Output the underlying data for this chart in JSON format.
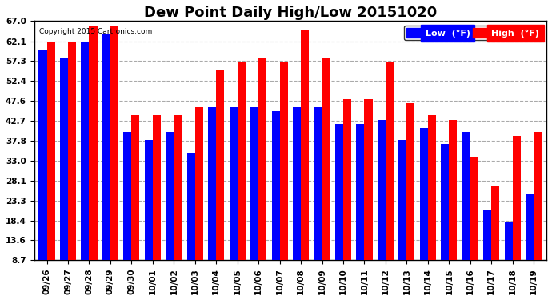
{
  "title": "Dew Point Daily High/Low 20151020",
  "copyright": "Copyright 2015 Cartronics.com",
  "categories": [
    "09/26",
    "09/27",
    "09/28",
    "09/29",
    "09/30",
    "10/01",
    "10/02",
    "10/03",
    "10/04",
    "10/05",
    "10/06",
    "10/07",
    "10/08",
    "10/09",
    "10/10",
    "10/11",
    "10/12",
    "10/13",
    "10/14",
    "10/15",
    "10/16",
    "10/17",
    "10/18",
    "10/19"
  ],
  "low_values": [
    60,
    58,
    62,
    64,
    40,
    38,
    40,
    35,
    46,
    46,
    46,
    45,
    46,
    46,
    42,
    42,
    43,
    38,
    41,
    37,
    40,
    21,
    18,
    25
  ],
  "high_values": [
    62,
    62,
    66,
    66,
    44,
    44,
    44,
    46,
    55,
    57,
    58,
    57,
    65,
    58,
    48,
    48,
    57,
    47,
    44,
    43,
    34,
    27,
    39,
    40
  ],
  "low_color": "#0000ff",
  "high_color": "#ff0000",
  "bg_color": "#ffffff",
  "plot_bg_color": "#ffffff",
  "grid_color": "#aaaaaa",
  "yticks": [
    8.7,
    13.6,
    18.4,
    23.3,
    28.1,
    33.0,
    37.8,
    42.7,
    47.6,
    52.4,
    57.3,
    62.1,
    67.0
  ],
  "ymin": 8.7,
  "ymax": 67.0,
  "bar_width": 0.38,
  "title_fontsize": 13,
  "tick_fontsize": 7.5,
  "legend_fontsize": 8
}
